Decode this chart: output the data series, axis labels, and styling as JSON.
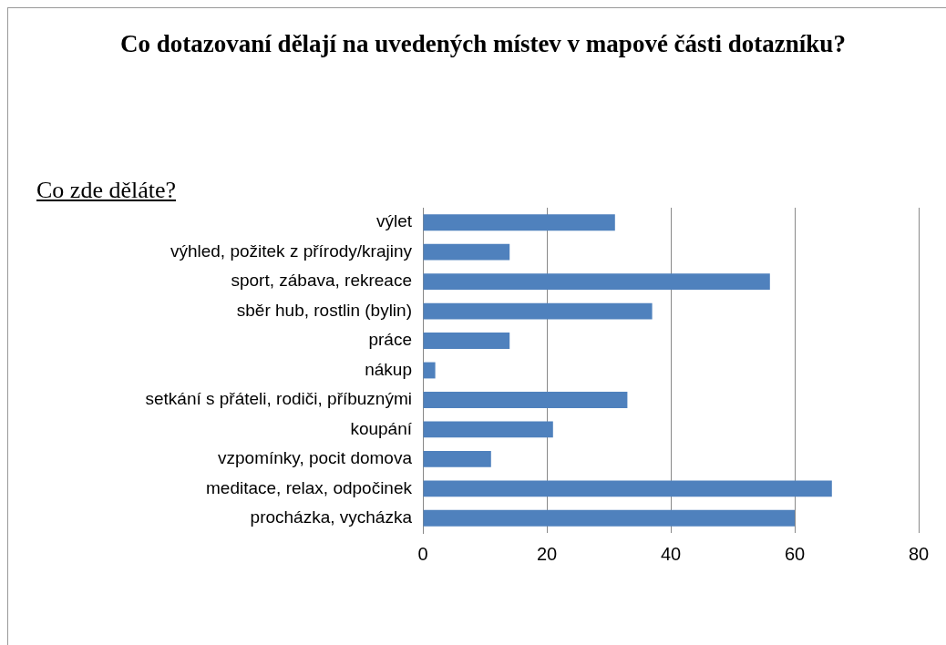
{
  "chart_data": {
    "type": "bar",
    "orientation": "horizontal",
    "title": "Co dotazovaní dělají na uvedených místev v mapové části dotazníku?",
    "subtitle": "Co zde děláte?",
    "categories": [
      "výlet",
      "výhled, požitek z přírody/krajiny",
      "sport, zábava, rekreace",
      "sběr hub, rostlin (bylin)",
      "práce",
      "nákup",
      "setkání s přáteli, rodiči, příbuznými",
      "koupání",
      "vzpomínky, pocit domova",
      "meditace, relax, odpočinek",
      "procházka, vycházka"
    ],
    "values": [
      31,
      14,
      56,
      37,
      14,
      2,
      33,
      21,
      11,
      66,
      60
    ],
    "color": "#4f81bd",
    "xlim": [
      0,
      80
    ],
    "xticks": [
      0,
      20,
      40,
      60,
      80
    ],
    "grid": "x"
  }
}
